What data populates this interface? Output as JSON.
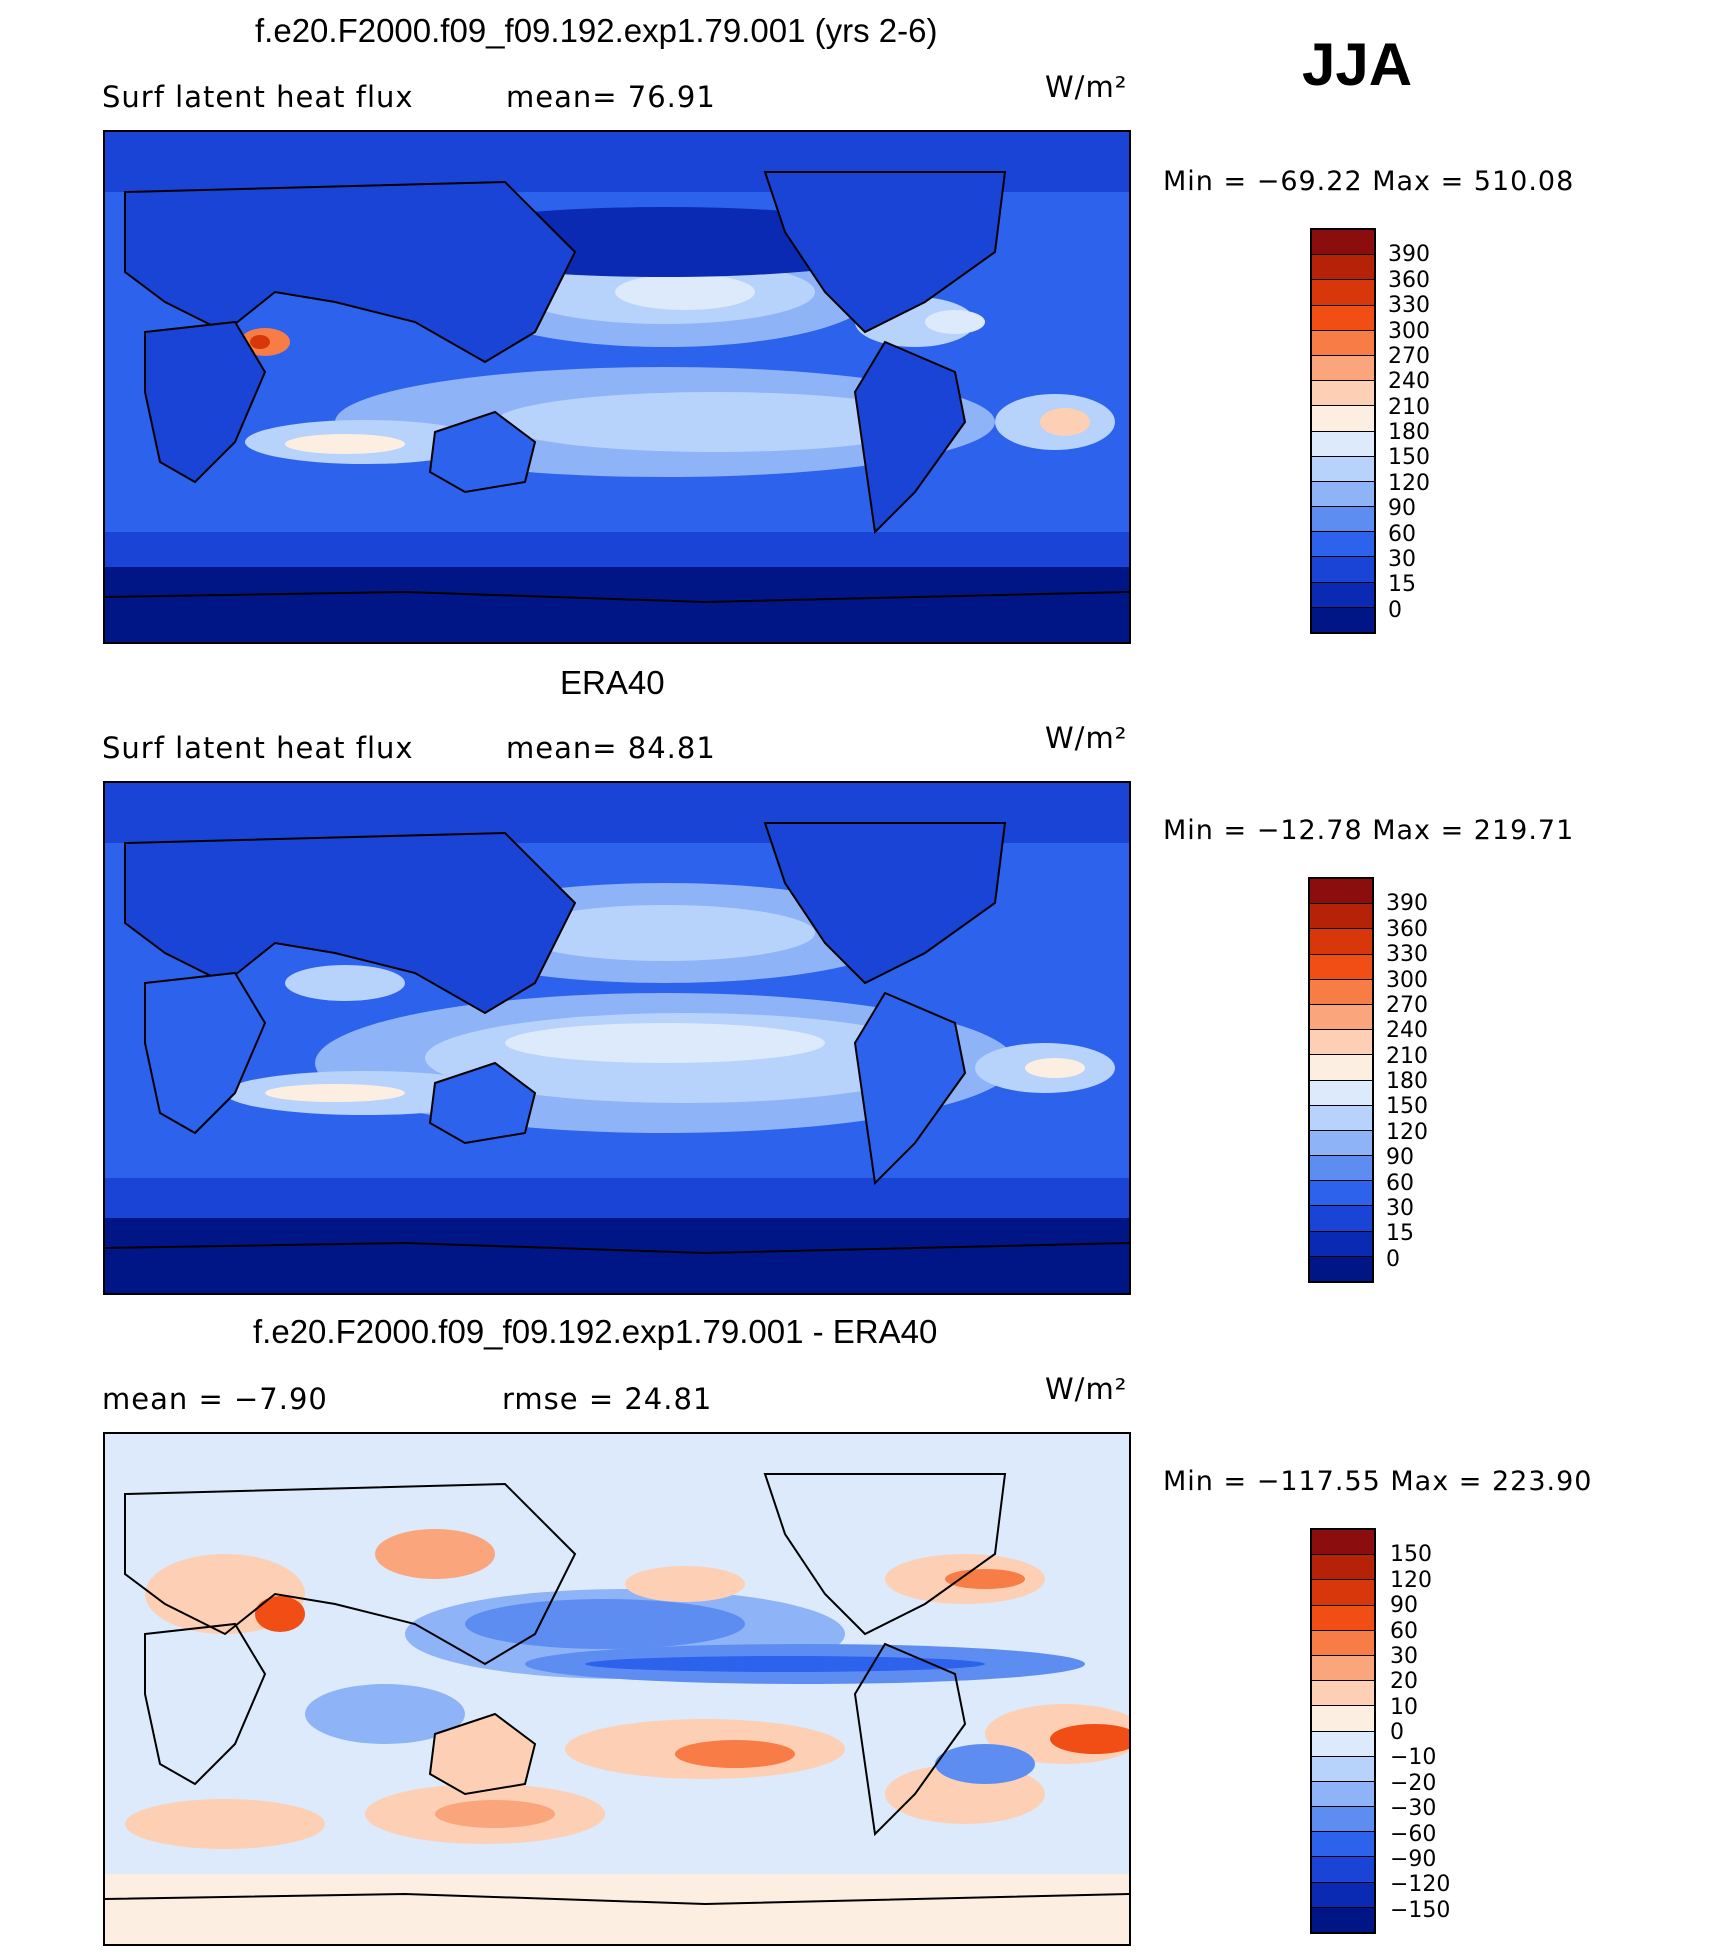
{
  "season": "JJA",
  "panels": [
    {
      "title": "f.e20.F2000.f09_f09.192.exp1.79.001 (yrs 2-6)",
      "left_text": "Surf  latent  heat  flux",
      "mid_text": "mean=   76.91",
      "units": "W/m²",
      "minmax": "Min  =  −69.22  Max  =  510.08",
      "levels": [
        "390",
        "360",
        "330",
        "300",
        "270",
        "240",
        "210",
        "180",
        "150",
        "120",
        "90",
        "60",
        "30",
        "15",
        "0"
      ]
    },
    {
      "title": "ERA40",
      "left_text": "Surf  latent  heat  flux",
      "mid_text": "mean=   84.81",
      "units": "W/m²",
      "minmax": "Min  =  −12.78  Max  =  219.71",
      "levels": [
        "390",
        "360",
        "330",
        "300",
        "270",
        "240",
        "210",
        "180",
        "150",
        "120",
        "90",
        "60",
        "30",
        "15",
        "0"
      ]
    },
    {
      "title": "f.e20.F2000.f09_f09.192.exp1.79.001 - ERA40",
      "left_text": "mean  =    −7.90",
      "mid_text": "rmse  =    24.81",
      "units": "W/m²",
      "minmax": "Min  =  −117.55  Max  =  223.90",
      "levels": [
        "150",
        "120",
        "90",
        "60",
        "30",
        "20",
        "10",
        "0",
        "−10",
        "−20",
        "−30",
        "−60",
        "−90",
        "−120",
        "−150"
      ]
    }
  ],
  "colors": {
    "abs_scale": [
      "#8b0d0d",
      "#b52208",
      "#d8360b",
      "#f04e14",
      "#f87c45",
      "#fba57d",
      "#fdd0b5",
      "#fdeee2",
      "#dceafb",
      "#b7d2fb",
      "#8fb3f7",
      "#5e8df2",
      "#2d62ec",
      "#1a44d6",
      "#0a2ab4",
      "#001687"
    ],
    "diff_scale": [
      "#8b0d0d",
      "#b52208",
      "#d8360b",
      "#f04e14",
      "#f87c45",
      "#fba57d",
      "#fdd0b5",
      "#fdeee2",
      "#dceafb",
      "#b7d2fb",
      "#8fb3f7",
      "#5e8df2",
      "#2d62ec",
      "#1a44d6",
      "#0a2ab4",
      "#001687"
    ]
  }
}
